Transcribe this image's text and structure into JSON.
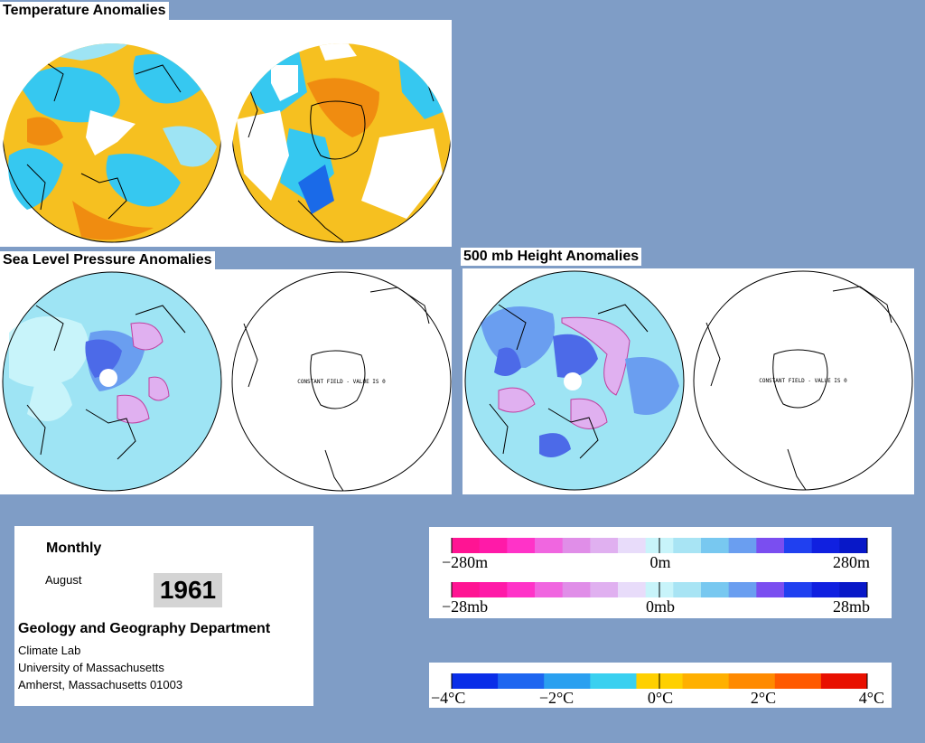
{
  "panels": {
    "temperature": {
      "title": "Temperature Anomalies"
    },
    "slp": {
      "title": "Sea Level Pressure Anomalies",
      "constant_note": "CONSTANT FIELD - VALUE IS 0"
    },
    "height": {
      "title": "500 mb Height Anomalies",
      "constant_note": "CONSTANT FIELD - VALUE IS 0"
    }
  },
  "info": {
    "period": "Monthly",
    "month": "August",
    "year": "1961",
    "department": "Geology and Geography Department",
    "lab": "Climate Lab",
    "university": "University of Massachusetts",
    "address": "Amherst, Massachusetts 01003"
  },
  "legend_pressure": {
    "height_labels": [
      "−280m",
      "0m",
      "280m"
    ],
    "pressure_labels": [
      "−28mb",
      "0mb",
      "28mb"
    ],
    "colors": [
      "#ff1493",
      "#ff1aa8",
      "#ff33c8",
      "#f066e0",
      "#e08ee8",
      "#e0b0f0",
      "#e8dcfa",
      "#c8f4fa",
      "#a8e4f4",
      "#78c8f0",
      "#6a9ef0",
      "#7a4ef0",
      "#2040f0",
      "#1020e0",
      "#0818c8"
    ]
  },
  "legend_temperature": {
    "labels": [
      "−4°C",
      "−2°C",
      "0°C",
      "2°C",
      "4°C"
    ],
    "colors": [
      "#0a2ee8",
      "#1e66f0",
      "#2aa0f0",
      "#3ad0f0",
      "#ffd000",
      "#ffb000",
      "#ff8a00",
      "#ff5a00",
      "#e81000"
    ]
  }
}
